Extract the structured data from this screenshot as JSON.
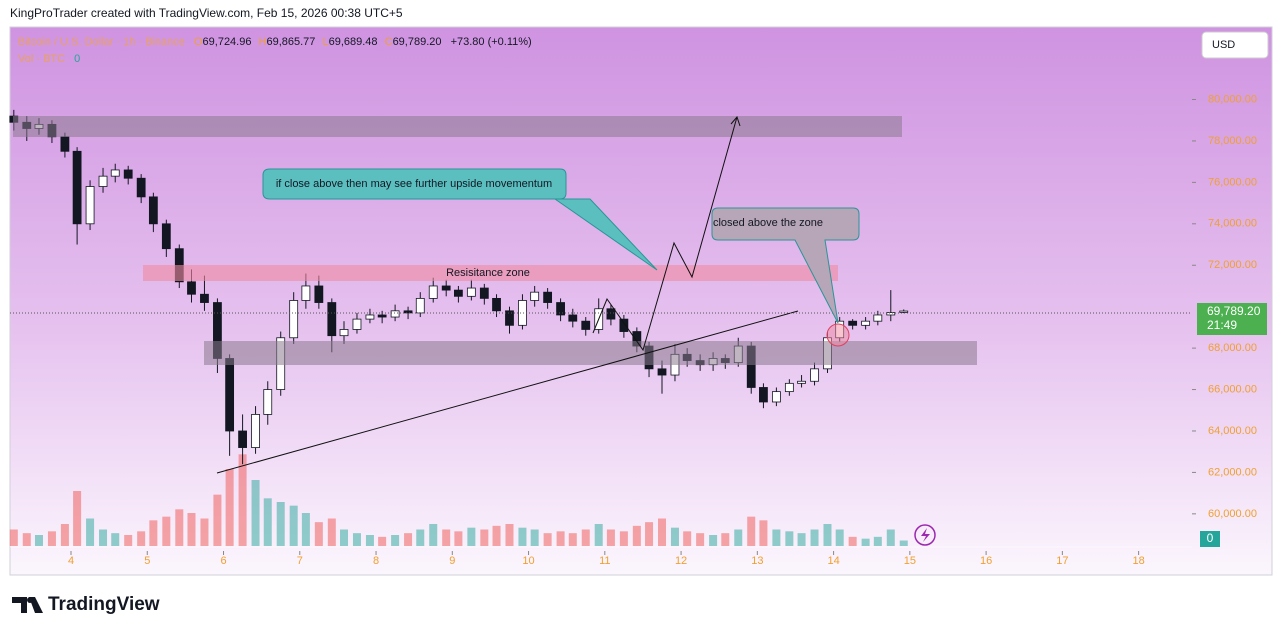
{
  "chart_data": {
    "type": "candlestick",
    "credit": "KingProTrader created with TradingView.com, Feb 15, 2026 00:38 UTC+5",
    "symbol": "Bitcoin / U.S. Dollar · 1h · Binance",
    "legend": {
      "o_key": "O",
      "o": "69,724.96",
      "h_key": "H",
      "h": "69,865.77",
      "l_key": "L",
      "l": "69,689.48",
      "c_key": "C",
      "c": "69,789.20",
      "change": "+73.80 (+0.11%)"
    },
    "volume_title": "Vol · BTC",
    "volume_value": "0",
    "volume_axis_label": "0",
    "currency_button": "USD",
    "last_price_label": "69,789.20",
    "countdown": "21:49",
    "annotations": {
      "callout_upside": "if close above then may see further upside movementum",
      "callout_closed": "closed above the zone",
      "resistance_zone": "Resisitance zone"
    },
    "brand": "TradingView",
    "up_color": "#26a69a",
    "down_color": "#ef5350",
    "x": [
      3.25,
      3.42,
      3.58,
      3.75,
      3.92,
      4.08,
      4.25,
      4.42,
      4.58,
      4.75,
      4.92,
      5.08,
      5.25,
      5.42,
      5.58,
      5.75,
      5.92,
      6.08,
      6.25,
      6.42,
      6.58,
      6.75,
      6.92,
      7.08,
      7.25,
      7.42,
      7.58,
      7.75,
      7.92,
      8.08,
      8.25,
      8.42,
      8.58,
      8.75,
      8.92,
      9.08,
      9.25,
      9.42,
      9.58,
      9.75,
      9.92,
      10.08,
      10.25,
      10.42,
      10.58,
      10.75,
      10.92,
      11.08,
      11.25,
      11.42,
      11.58,
      11.75,
      11.92,
      12.08,
      12.25,
      12.42,
      12.58,
      12.75,
      12.92,
      13.08,
      13.25,
      13.42,
      13.58,
      13.75,
      13.92,
      14.08,
      14.25,
      14.42,
      14.58,
      14.75,
      14.92
    ],
    "open": [
      79200,
      78900,
      78600,
      78800,
      78200,
      77500,
      74000,
      75800,
      76300,
      76600,
      76200,
      75300,
      74000,
      72800,
      71200,
      70600,
      70200,
      67500,
      64000,
      63200,
      64800,
      66000,
      68500,
      70300,
      71000,
      70200,
      68600,
      68900,
      69400,
      69600,
      69500,
      69800,
      69700,
      70400,
      71000,
      70800,
      70500,
      70900,
      70400,
      69800,
      69100,
      70300,
      70700,
      70200,
      69600,
      69300,
      68900,
      69900,
      69400,
      68800,
      68100,
      67000,
      66700,
      67700,
      67400,
      67200,
      67500,
      67300,
      68100,
      66100,
      65400,
      65900,
      66300,
      66400,
      67000,
      68500,
      69300,
      69100,
      69300,
      69600,
      69724.96
    ],
    "high": [
      79500,
      79200,
      79100,
      79000,
      78400,
      77700,
      76100,
      76700,
      76900,
      76800,
      76400,
      75500,
      74200,
      73000,
      71800,
      71500,
      70400,
      67700,
      64800,
      65200,
      66400,
      68800,
      70700,
      71600,
      71500,
      70400,
      69300,
      69700,
      69900,
      69800,
      70100,
      70000,
      70700,
      71400,
      71300,
      71000,
      71300,
      71100,
      70600,
      70000,
      70600,
      71000,
      70900,
      70400,
      69900,
      69500,
      70400,
      70100,
      69600,
      69000,
      68300,
      67400,
      68200,
      68000,
      67700,
      67800,
      67700,
      68500,
      68300,
      66300,
      66100,
      66500,
      66700,
      67300,
      68800,
      69500,
      69400,
      69500,
      69800,
      70800,
      69865.77
    ],
    "low": [
      78500,
      78000,
      78300,
      77900,
      77200,
      73000,
      73700,
      75500,
      76000,
      75900,
      75000,
      73600,
      72400,
      70900,
      70200,
      69800,
      66800,
      62800,
      62400,
      62900,
      64300,
      65700,
      68200,
      69900,
      69900,
      67800,
      68200,
      68700,
      69200,
      69200,
      69300,
      69400,
      69500,
      70200,
      70500,
      70200,
      70300,
      70100,
      69500,
      68700,
      68900,
      70000,
      69900,
      69300,
      69000,
      68600,
      68700,
      69100,
      68500,
      67800,
      66600,
      65800,
      66400,
      67100,
      66900,
      66900,
      67000,
      67100,
      65800,
      65100,
      65200,
      65700,
      66100,
      66200,
      66800,
      68300,
      68900,
      68900,
      69100,
      69300,
      69689.48
    ],
    "close": [
      78900,
      78600,
      78800,
      78200,
      77500,
      74000,
      75800,
      76300,
      76600,
      76200,
      75300,
      74000,
      72800,
      71200,
      70600,
      70200,
      67500,
      64000,
      63200,
      64800,
      66000,
      68500,
      70300,
      71000,
      70200,
      68600,
      68900,
      69400,
      69600,
      69500,
      69800,
      69700,
      70400,
      71000,
      70800,
      70500,
      70900,
      70400,
      69800,
      69100,
      70300,
      70700,
      70200,
      69600,
      69300,
      68900,
      69900,
      69400,
      68800,
      68100,
      67000,
      66700,
      67700,
      67400,
      67200,
      67500,
      67300,
      68100,
      66100,
      65400,
      65900,
      66300,
      66400,
      67000,
      68500,
      69300,
      69100,
      69300,
      69600,
      69715.4,
      69789.2
    ],
    "volume": [
      900,
      700,
      600,
      800,
      1200,
      3000,
      1500,
      900,
      700,
      600,
      800,
      1400,
      1600,
      2000,
      1800,
      1500,
      2800,
      4200,
      5000,
      3600,
      2600,
      2400,
      2200,
      1800,
      1300,
      1500,
      900,
      700,
      600,
      500,
      600,
      700,
      900,
      1200,
      900,
      800,
      1000,
      900,
      1100,
      1200,
      1000,
      900,
      700,
      800,
      700,
      900,
      1200,
      900,
      800,
      1100,
      1300,
      1500,
      1000,
      800,
      700,
      600,
      700,
      900,
      1600,
      1400,
      900,
      800,
      700,
      900,
      1200,
      900,
      500,
      400,
      500,
      900,
      300
    ],
    "volume_lim": [
      0,
      6000
    ],
    "xlim": [
      3.2,
      18.7
    ],
    "xticks": [
      4,
      5,
      6,
      7,
      8,
      9,
      10,
      11,
      12,
      13,
      14,
      15,
      16,
      17,
      18
    ],
    "ylim": [
      58400,
      83500
    ],
    "yticks": [
      {
        "value": 60000,
        "label": "60,000.00"
      },
      {
        "value": 62000,
        "label": "62,000.00"
      },
      {
        "value": 64000,
        "label": "64,000.00"
      },
      {
        "value": 66000,
        "label": "66,000.00"
      },
      {
        "value": 68000,
        "label": "68,000.00"
      },
      {
        "value": 72000,
        "label": "72,000.00"
      },
      {
        "value": 74000,
        "label": "74,000.00"
      },
      {
        "value": 76000,
        "label": "76,000.00"
      },
      {
        "value": 78000,
        "label": "78,000.00"
      },
      {
        "value": 80000,
        "label": "80,000.00"
      }
    ]
  }
}
